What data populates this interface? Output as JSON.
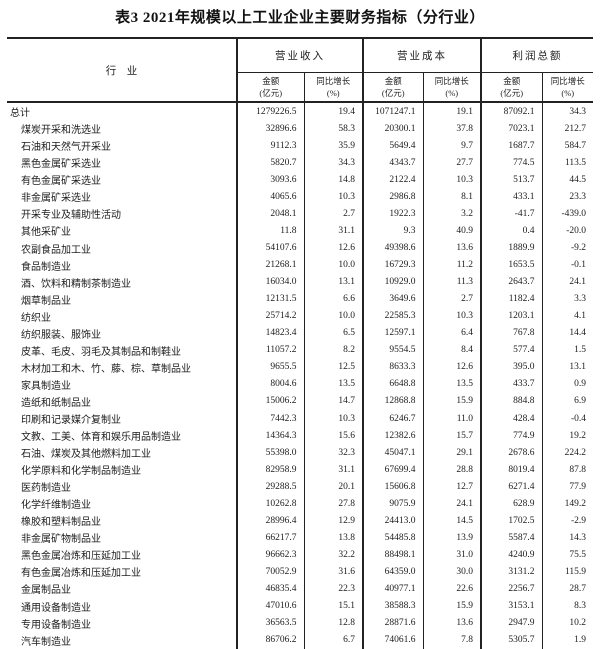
{
  "title": "表3 2021年规模以上工业企业主要财务指标（分行业）",
  "table": {
    "industry_header": "行　业",
    "groups": [
      {
        "label": "营业收入"
      },
      {
        "label": "营业成本"
      },
      {
        "label": "利润总额"
      }
    ],
    "subcols": {
      "amount": [
        "金额",
        "(亿元)"
      ],
      "growth": [
        "同比增长",
        "(%)"
      ]
    },
    "rows": [
      {
        "industry": "总计",
        "indent": false,
        "values": [
          "1279226.5",
          "19.4",
          "1071247.1",
          "19.1",
          "87092.1",
          "34.3"
        ]
      },
      {
        "industry": "煤炭开采和洗选业",
        "indent": true,
        "values": [
          "32896.6",
          "58.3",
          "20300.1",
          "37.8",
          "7023.1",
          "212.7"
        ]
      },
      {
        "industry": "石油和天然气开采业",
        "indent": true,
        "values": [
          "9112.3",
          "35.9",
          "5649.4",
          "9.7",
          "1687.7",
          "584.7"
        ]
      },
      {
        "industry": "黑色金属矿采选业",
        "indent": true,
        "values": [
          "5820.7",
          "34.3",
          "4343.7",
          "27.7",
          "774.5",
          "113.5"
        ]
      },
      {
        "industry": "有色金属矿采选业",
        "indent": true,
        "values": [
          "3093.6",
          "14.8",
          "2122.4",
          "10.3",
          "513.7",
          "44.5"
        ]
      },
      {
        "industry": "非金属矿采选业",
        "indent": true,
        "values": [
          "4065.6",
          "10.3",
          "2986.8",
          "8.1",
          "433.1",
          "23.3"
        ]
      },
      {
        "industry": "开采专业及辅助性活动",
        "indent": true,
        "values": [
          "2048.1",
          "2.7",
          "1922.3",
          "3.2",
          "-41.7",
          "-439.0"
        ]
      },
      {
        "industry": "其他采矿业",
        "indent": true,
        "values": [
          "11.8",
          "31.1",
          "9.3",
          "40.9",
          "0.4",
          "-20.0"
        ]
      },
      {
        "industry": "农副食品加工业",
        "indent": true,
        "values": [
          "54107.6",
          "12.6",
          "49398.6",
          "13.6",
          "1889.9",
          "-9.2"
        ]
      },
      {
        "industry": "食品制造业",
        "indent": true,
        "values": [
          "21268.1",
          "10.0",
          "16729.3",
          "11.2",
          "1653.5",
          "-0.1"
        ]
      },
      {
        "industry": "酒、饮料和精制茶制造业",
        "indent": true,
        "values": [
          "16034.0",
          "13.1",
          "10929.0",
          "11.3",
          "2643.7",
          "24.1"
        ]
      },
      {
        "industry": "烟草制品业",
        "indent": true,
        "values": [
          "12131.5",
          "6.6",
          "3649.6",
          "2.7",
          "1182.4",
          "3.3"
        ]
      },
      {
        "industry": "纺织业",
        "indent": true,
        "values": [
          "25714.2",
          "10.0",
          "22585.3",
          "10.3",
          "1203.1",
          "4.1"
        ]
      },
      {
        "industry": "纺织服装、服饰业",
        "indent": true,
        "values": [
          "14823.4",
          "6.5",
          "12597.1",
          "6.4",
          "767.8",
          "14.4"
        ]
      },
      {
        "industry": "皮革、毛皮、羽毛及其制品和制鞋业",
        "indent": true,
        "values": [
          "11057.2",
          "8.2",
          "9554.5",
          "8.4",
          "577.4",
          "1.5"
        ]
      },
      {
        "industry": "木材加工和木、竹、藤、棕、草制品业",
        "indent": true,
        "values": [
          "9655.5",
          "12.5",
          "8633.3",
          "12.6",
          "395.0",
          "13.1"
        ]
      },
      {
        "industry": "家具制造业",
        "indent": true,
        "values": [
          "8004.6",
          "13.5",
          "6648.8",
          "13.5",
          "433.7",
          "0.9"
        ]
      },
      {
        "industry": "造纸和纸制品业",
        "indent": true,
        "values": [
          "15006.2",
          "14.7",
          "12868.8",
          "15.9",
          "884.8",
          "6.9"
        ]
      },
      {
        "industry": "印刷和记录媒介复制业",
        "indent": true,
        "values": [
          "7442.3",
          "10.3",
          "6246.7",
          "11.0",
          "428.4",
          "-0.4"
        ]
      },
      {
        "industry": "文教、工美、体育和娱乐用品制造业",
        "indent": true,
        "values": [
          "14364.3",
          "15.6",
          "12382.6",
          "15.7",
          "774.9",
          "19.2"
        ]
      },
      {
        "industry": "石油、煤炭及其他燃料加工业",
        "indent": true,
        "values": [
          "55398.0",
          "32.3",
          "45047.1",
          "29.1",
          "2678.6",
          "224.2"
        ]
      },
      {
        "industry": "化学原料和化学制品制造业",
        "indent": true,
        "values": [
          "82958.9",
          "31.1",
          "67699.4",
          "28.8",
          "8019.4",
          "87.8"
        ]
      },
      {
        "industry": "医药制造业",
        "indent": true,
        "values": [
          "29288.5",
          "20.1",
          "15606.8",
          "12.7",
          "6271.4",
          "77.9"
        ]
      },
      {
        "industry": "化学纤维制造业",
        "indent": true,
        "values": [
          "10262.8",
          "27.8",
          "9075.9",
          "24.1",
          "628.9",
          "149.2"
        ]
      },
      {
        "industry": "橡胶和塑料制品业",
        "indent": true,
        "values": [
          "28996.4",
          "12.9",
          "24413.0",
          "14.5",
          "1702.5",
          "-2.9"
        ]
      },
      {
        "industry": "非金属矿物制品业",
        "indent": true,
        "values": [
          "66217.7",
          "13.8",
          "54485.8",
          "13.9",
          "5587.4",
          "14.3"
        ]
      },
      {
        "industry": "黑色金属冶炼和压延加工业",
        "indent": true,
        "values": [
          "96662.3",
          "32.2",
          "88498.1",
          "31.0",
          "4240.9",
          "75.5"
        ]
      },
      {
        "industry": "有色金属冶炼和压延加工业",
        "indent": true,
        "values": [
          "70052.9",
          "31.6",
          "64359.0",
          "30.0",
          "3131.2",
          "115.9"
        ]
      },
      {
        "industry": "金属制品业",
        "indent": true,
        "values": [
          "46835.4",
          "22.3",
          "40977.1",
          "22.6",
          "2256.7",
          "28.7"
        ]
      },
      {
        "industry": "通用设备制造业",
        "indent": true,
        "values": [
          "47010.6",
          "15.1",
          "38588.3",
          "15.9",
          "3153.1",
          "8.3"
        ]
      },
      {
        "industry": "专用设备制造业",
        "indent": true,
        "values": [
          "36563.5",
          "12.8",
          "28871.6",
          "13.6",
          "2947.9",
          "10.2"
        ]
      },
      {
        "industry": "汽车制造业",
        "indent": true,
        "values": [
          "86706.2",
          "6.7",
          "74061.6",
          "7.8",
          "5305.7",
          "1.9"
        ]
      }
    ]
  }
}
